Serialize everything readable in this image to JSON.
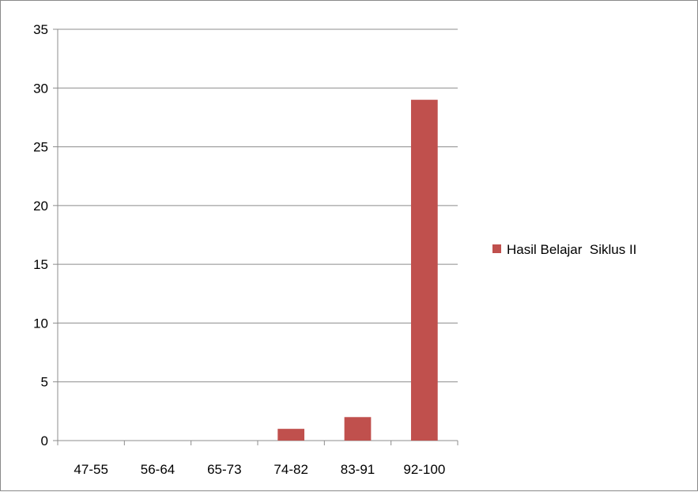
{
  "chart_data": {
    "type": "bar",
    "title": "",
    "xlabel": "",
    "ylabel": "",
    "categories": [
      "47-55",
      "56-64",
      "65-73",
      "74-82",
      "83-91",
      "92-100"
    ],
    "series": [
      {
        "name": "Hasil Belajar  Siklus II",
        "values": [
          0,
          0,
          0,
          1,
          2,
          29
        ],
        "color": "#C0504D"
      }
    ],
    "ylim": [
      0,
      35
    ],
    "yticks": [
      0,
      5,
      10,
      15,
      20,
      25,
      30,
      35
    ],
    "grid": true,
    "legend_position": "right"
  }
}
